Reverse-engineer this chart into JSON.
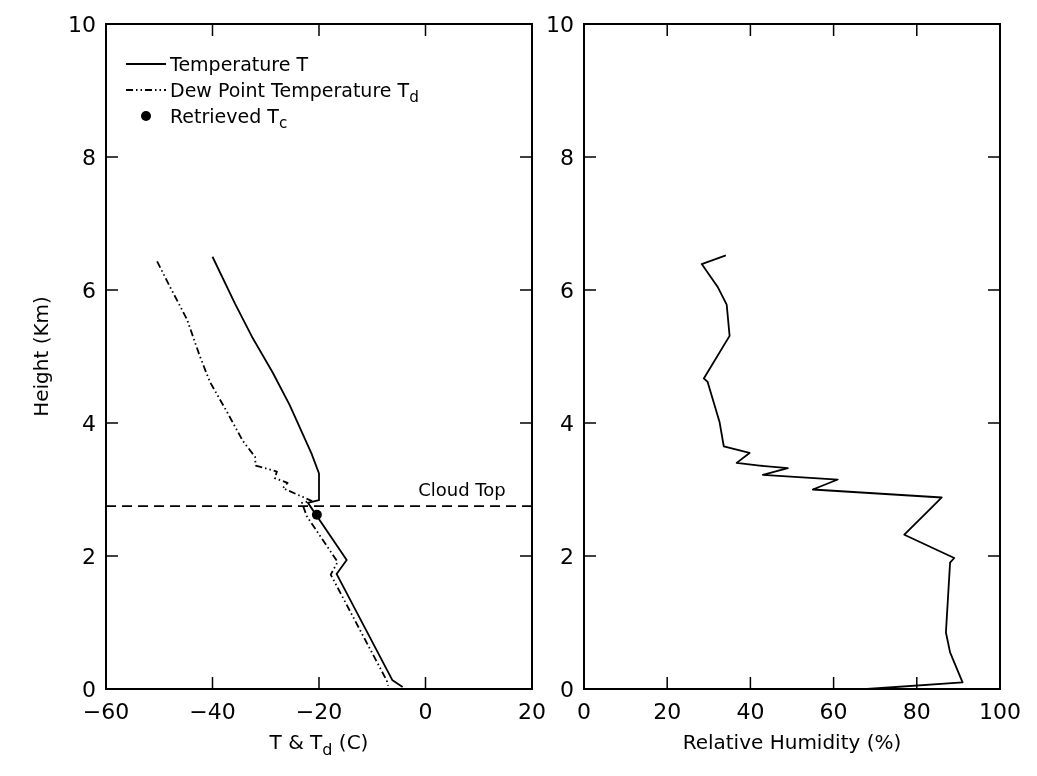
{
  "chart_data": [
    {
      "type": "line",
      "xlabel": "T & T$_{d}$ (C)",
      "ylabel": "Height (Km)",
      "xlim": [
        -60,
        20
      ],
      "xticks": [
        -60,
        -40,
        -20,
        0,
        20
      ],
      "ylim": [
        0,
        10
      ],
      "yticks": [
        0,
        2,
        4,
        6,
        8,
        10
      ],
      "legend": "top left",
      "grid": false,
      "series": [
        {
          "name": "Temperature T",
          "color": "#000000",
          "line_style": "solid",
          "x": [
            -40,
            -35.8,
            -32.4,
            -28.7,
            -25.5,
            -21.4,
            -20,
            -20,
            -22.1,
            -21.4,
            -14.8,
            -16.7,
            -6.2,
            -4.3
          ],
          "values": [
            6.5,
            5.8,
            5.27,
            4.76,
            4.27,
            3.54,
            3.24,
            2.84,
            2.8,
            2.72,
            1.94,
            1.73,
            0.13,
            0.03
          ]
        },
        {
          "name": "Dew Point Temperature T$_{d}$",
          "color": "#000000",
          "line_style": "dotted",
          "x": [
            -50.4,
            -48,
            -44.8,
            -42.4,
            -40.5,
            -37.3,
            -34.3,
            -32,
            -31.9,
            -27.9,
            -28.3,
            -25.9,
            -26.8,
            -21.4,
            -23.2,
            -22.3,
            -16.5,
            -17.8,
            -7.3,
            -7
          ],
          "values": [
            6.43,
            6.05,
            5.56,
            5.01,
            4.62,
            4.17,
            3.73,
            3.49,
            3.36,
            3.27,
            3.17,
            3.1,
            3.02,
            2.83,
            2.8,
            2.6,
            1.91,
            1.72,
            0.13,
            0.05
          ]
        },
        {
          "name": "Retrieved T$_{c}$",
          "type": "scatter",
          "marker": "circle",
          "color": "#000000",
          "x": [
            -20.4
          ],
          "values": [
            2.62
          ]
        }
      ],
      "ref_lines": [
        {
          "axis": "y",
          "value": 2.75,
          "label": "Cloud Top",
          "line_style": "dashed",
          "color": "#000000"
        }
      ]
    },
    {
      "type": "line",
      "xlabel": "Relative Humidity (%)",
      "xlim": [
        0,
        100
      ],
      "xticks": [
        0,
        20,
        40,
        60,
        80,
        100
      ],
      "ylim": [
        0,
        10
      ],
      "yticks": [
        0,
        2,
        4,
        6,
        8,
        10
      ],
      "grid": false,
      "series": [
        {
          "color": "#000000",
          "line_style": "solid",
          "x": [
            34.1,
            28.3,
            32.1,
            34.3,
            35,
            28.8,
            29.7,
            32.6,
            33.6,
            39.8,
            36.7,
            42.2,
            49,
            43,
            61,
            55,
            86,
            77,
            89,
            88,
            87,
            88,
            91,
            68
          ],
          "values": [
            6.52,
            6.39,
            6.05,
            5.78,
            5.31,
            4.67,
            4.62,
            4.01,
            3.65,
            3.55,
            3.4,
            3.36,
            3.32,
            3.22,
            3.15,
            3.0,
            2.88,
            2.32,
            1.97,
            1.9,
            0.85,
            0.55,
            0.1,
            0.0
          ]
        }
      ]
    }
  ]
}
